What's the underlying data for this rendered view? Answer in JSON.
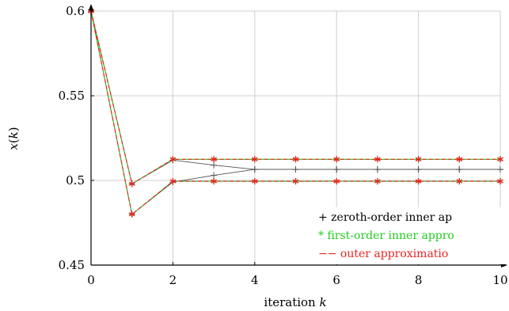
{
  "chart_data": {
    "type": "line",
    "title": "",
    "xlabel": "iteration k",
    "ylabel": "x(k)",
    "xlim": [
      0,
      10
    ],
    "ylim": [
      0.45,
      0.6
    ],
    "x_ticks": [
      0,
      2,
      4,
      6,
      8,
      10
    ],
    "x_tick_labels": [
      "0",
      "2",
      "4",
      "6",
      "8",
      "10"
    ],
    "y_ticks": [
      0.45,
      0.5,
      0.55,
      0.6
    ],
    "y_tick_labels": [
      "0.45",
      "0.5",
      "0.55",
      "0.6"
    ],
    "grid": "on",
    "legend_position": "right",
    "x": [
      0,
      1,
      2,
      3,
      4,
      5,
      6,
      7,
      8,
      9,
      10
    ],
    "series": [
      {
        "name": "zeroth-order inner approximation",
        "legend_text": "zeroth-order inner ap",
        "legend_marker": "+",
        "color": "#555555",
        "style": "solid",
        "marker": "plus",
        "branches": [
          [
            0.6,
            0.498,
            0.512,
            0.509,
            0.5065,
            0.5065,
            0.5065,
            0.5065,
            0.5065,
            0.5065,
            0.5065
          ],
          [
            0.6,
            0.48,
            0.499,
            0.503,
            0.5065,
            0.5065,
            0.5065,
            0.5065,
            0.5065,
            0.5065,
            0.5065
          ]
        ]
      },
      {
        "name": "first-order inner approximation",
        "legend_text": "first-order inner appro",
        "legend_marker": "*",
        "color": "#22cc22",
        "style": "solid",
        "marker": "star",
        "branches": [
          [
            0.6,
            0.498,
            0.5125,
            0.5125,
            0.5125,
            0.5125,
            0.5125,
            0.5125,
            0.5125,
            0.5125,
            0.5125
          ],
          [
            0.6,
            0.48,
            0.4995,
            0.4995,
            0.4995,
            0.4995,
            0.4995,
            0.4995,
            0.4995,
            0.4995,
            0.4995
          ]
        ]
      },
      {
        "name": "outer approximation",
        "legend_text": "outer approximatio",
        "legend_marker": "−−",
        "color": "#ee2222",
        "style": "dashed",
        "marker": "star",
        "branches": [
          [
            0.6,
            0.498,
            0.5125,
            0.5125,
            0.5125,
            0.5125,
            0.5125,
            0.5125,
            0.5125,
            0.5125,
            0.5125
          ],
          [
            0.6,
            0.48,
            0.4995,
            0.4995,
            0.4995,
            0.4995,
            0.4995,
            0.4995,
            0.4995,
            0.4995,
            0.4995
          ]
        ]
      }
    ]
  }
}
